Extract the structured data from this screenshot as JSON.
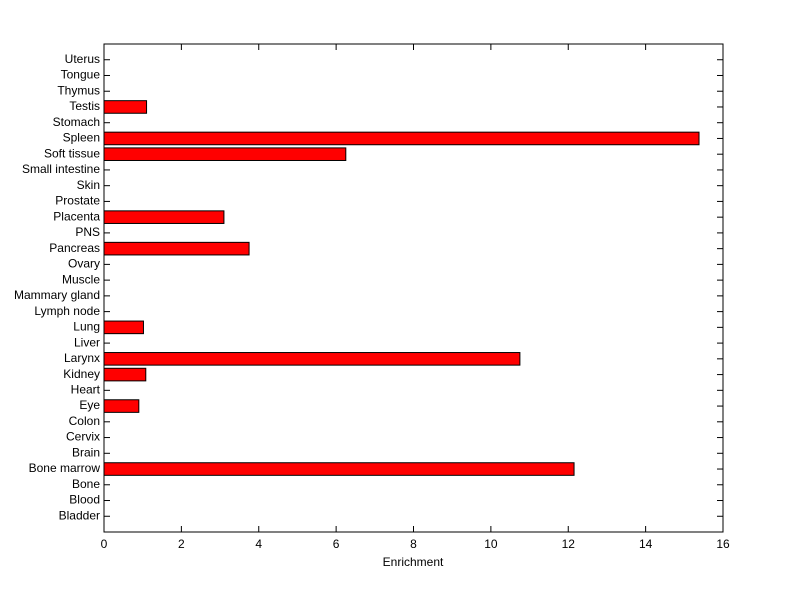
{
  "chart_data": {
    "type": "barh",
    "xlabel": "Enrichment",
    "categories": [
      "Bladder",
      "Blood",
      "Bone",
      "Bone marrow",
      "Brain",
      "Cervix",
      "Colon",
      "Eye",
      "Heart",
      "Kidney",
      "Larynx",
      "Liver",
      "Lung",
      "Lymph node",
      "Mammary gland",
      "Muscle",
      "Ovary",
      "Pancreas",
      "PNS",
      "Placenta",
      "Prostate",
      "Skin",
      "Small intestine",
      "Soft tissue",
      "Spleen",
      "Stomach",
      "Testis",
      "Thymus",
      "Tongue",
      "Uterus"
    ],
    "values": [
      0,
      0,
      0,
      12.15,
      0,
      0,
      0,
      0.9,
      0,
      1.08,
      10.75,
      0,
      1.02,
      0,
      0,
      0,
      0,
      3.75,
      0,
      3.1,
      0,
      0,
      0,
      6.25,
      15.38,
      0,
      1.1,
      0,
      0,
      0
    ],
    "color": "#ff0000",
    "xlim": [
      0,
      16
    ],
    "xticks": [
      0,
      2,
      4,
      6,
      8,
      10,
      12,
      14,
      16
    ]
  }
}
